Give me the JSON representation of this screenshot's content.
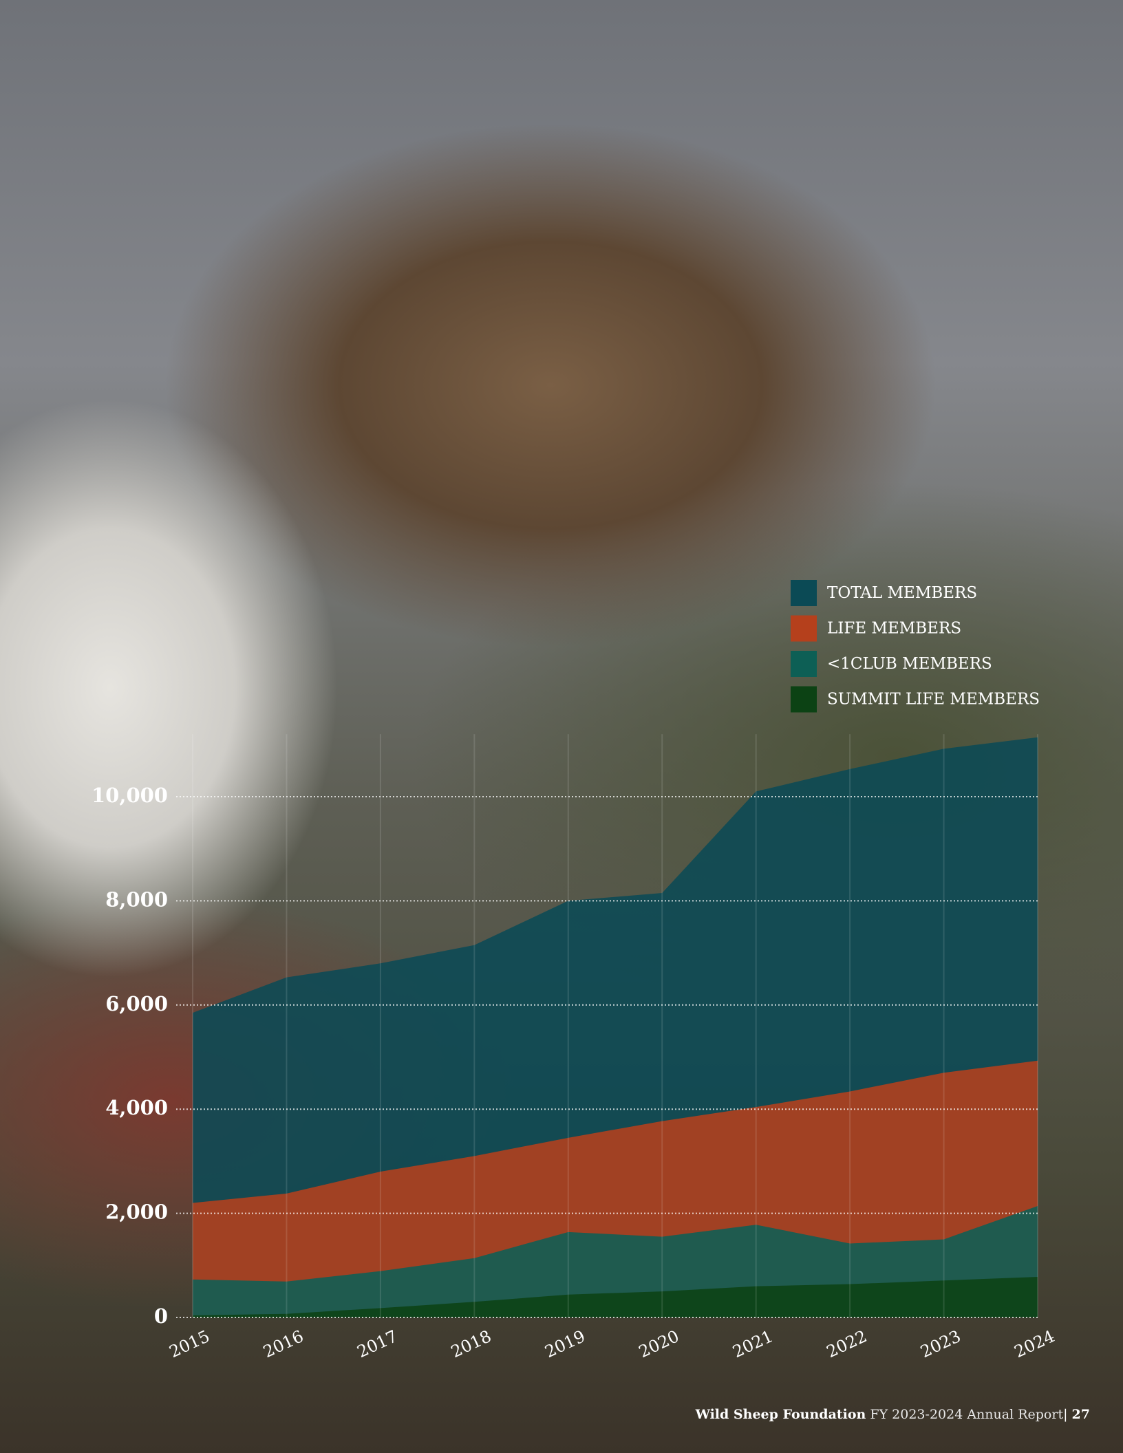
{
  "chart_data": {
    "type": "area",
    "categories": [
      "2015",
      "2016",
      "2017",
      "2018",
      "2019",
      "2020",
      "2021",
      "2022",
      "2023",
      "2024"
    ],
    "series": [
      {
        "name": "TOTAL MEMBERS",
        "color": "#0b4a55",
        "values": [
          5850,
          6530,
          6800,
          7150,
          8000,
          8150,
          10100,
          10530,
          10920,
          11140
        ]
      },
      {
        "name": "LIFE MEMBERS",
        "color": "#b5401c",
        "values": [
          2200,
          2380,
          2800,
          3100,
          3450,
          3770,
          4040,
          4340,
          4700,
          4930
        ]
      },
      {
        "name": "<1CLUB MEMBERS",
        "color": "#0d5f55",
        "values": [
          730,
          690,
          890,
          1140,
          1640,
          1550,
          1780,
          1420,
          1500,
          2140
        ]
      },
      {
        "name": "SUMMIT LIFE MEMBERS",
        "color": "#0c4214",
        "values": [
          40,
          70,
          180,
          300,
          440,
          500,
          600,
          640,
          710,
          780
        ]
      }
    ],
    "ylim": [
      0,
      11200
    ],
    "yticks": [
      0,
      {
        "value": 2000,
        "label": "2,000"
      },
      {
        "value": 4000,
        "label": "4,000"
      },
      {
        "value": 6000,
        "label": "6,000"
      },
      {
        "value": 8000,
        "label": "8,000"
      },
      {
        "value": 10000,
        "label": "10,000"
      }
    ],
    "grid": true,
    "legend": "top-right"
  },
  "footer": {
    "organization": "Wild Sheep Foundation",
    "report": "FY 2023-2024 Annual Report",
    "separator": "|",
    "page_number": "27"
  }
}
